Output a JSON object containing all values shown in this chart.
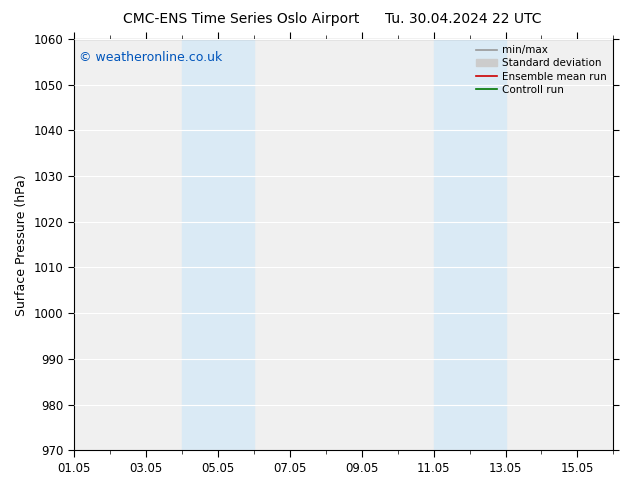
{
  "title_left": "CMC-ENS Time Series Oslo Airport",
  "title_right": "Tu. 30.04.2024 22 UTC",
  "ylabel": "Surface Pressure (hPa)",
  "ylim": [
    970,
    1060
  ],
  "yticks": [
    970,
    980,
    990,
    1000,
    1010,
    1020,
    1030,
    1040,
    1050,
    1060
  ],
  "xtick_labels": [
    "01.05",
    "03.05",
    "05.05",
    "07.05",
    "09.05",
    "11.05",
    "13.05",
    "15.05"
  ],
  "xtick_days": [
    1,
    3,
    5,
    7,
    9,
    11,
    13,
    15
  ],
  "xlim_days": [
    1,
    16
  ],
  "shade_bands": [
    {
      "d0": 4,
      "d1": 6
    },
    {
      "d0": 11,
      "d1": 13
    }
  ],
  "shade_color": "#daeaf5",
  "watermark": "© weatheronline.co.uk",
  "watermark_color": "#0055bb",
  "legend_entries": [
    {
      "label": "min/max",
      "color": "#999999",
      "lw": 1.2,
      "type": "line"
    },
    {
      "label": "Standard deviation",
      "color": "#cccccc",
      "lw": 6,
      "type": "patch"
    },
    {
      "label": "Ensemble mean run",
      "color": "#cc0000",
      "lw": 1.2,
      "type": "line"
    },
    {
      "label": "Controll run",
      "color": "#007700",
      "lw": 1.2,
      "type": "line"
    }
  ],
  "bg_color": "#ffffff",
  "plot_bg_color": "#f0f0f0",
  "grid_color": "#ffffff",
  "title_fontsize": 10,
  "label_fontsize": 9,
  "tick_fontsize": 8.5,
  "watermark_fontsize": 9
}
